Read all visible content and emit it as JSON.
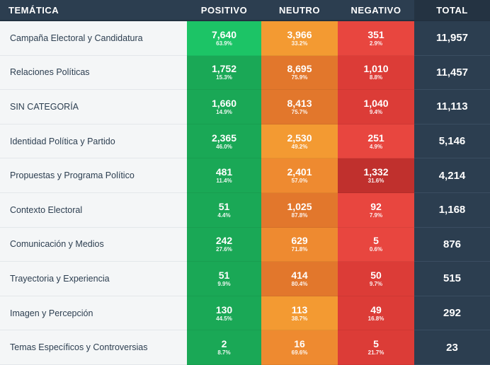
{
  "headers": {
    "tematica": "TEMÁTICA",
    "positivo": "POSITIVO",
    "neutro": "NEUTRO",
    "negativo": "NEGATIVO",
    "total": "TOTAL"
  },
  "colors": {
    "positivo_strong": "#1cc466",
    "positivo": "#1aa856",
    "neutro_light": "#f39a32",
    "neutro": "#ee8a30",
    "neutro_strong": "#e2772c",
    "negativo_light": "#e8463f",
    "negativo": "#dc3c37",
    "negativo_strong": "#c0302d",
    "total_bg": "#2c3e50",
    "header_bg": "#2c3e50"
  },
  "rows": [
    {
      "label": "Campaña Electoral y Candidatura",
      "pos": "7,640",
      "pos_pct": "63.9%",
      "neu": "3,966",
      "neu_pct": "33.2%",
      "neg": "351",
      "neg_pct": "2.9%",
      "total": "11,957"
    },
    {
      "label": "Relaciones Políticas",
      "pos": "1,752",
      "pos_pct": "15.3%",
      "neu": "8,695",
      "neu_pct": "75.9%",
      "neg": "1,010",
      "neg_pct": "8.8%",
      "total": "11,457"
    },
    {
      "label": "SIN CATEGORÍA",
      "pos": "1,660",
      "pos_pct": "14.9%",
      "neu": "8,413",
      "neu_pct": "75.7%",
      "neg": "1,040",
      "neg_pct": "9.4%",
      "total": "11,113"
    },
    {
      "label": "Identidad Política y Partido",
      "pos": "2,365",
      "pos_pct": "46.0%",
      "neu": "2,530",
      "neu_pct": "49.2%",
      "neg": "251",
      "neg_pct": "4.9%",
      "total": "5,146"
    },
    {
      "label": "Propuestas y Programa Político",
      "pos": "481",
      "pos_pct": "11.4%",
      "neu": "2,401",
      "neu_pct": "57.0%",
      "neg": "1,332",
      "neg_pct": "31.6%",
      "total": "4,214"
    },
    {
      "label": "Contexto Electoral",
      "pos": "51",
      "pos_pct": "4.4%",
      "neu": "1,025",
      "neu_pct": "87.8%",
      "neg": "92",
      "neg_pct": "7.9%",
      "total": "1,168"
    },
    {
      "label": "Comunicación y Medios",
      "pos": "242",
      "pos_pct": "27.6%",
      "neu": "629",
      "neu_pct": "71.8%",
      "neg": "5",
      "neg_pct": "0.6%",
      "total": "876"
    },
    {
      "label": "Trayectoria y Experiencia",
      "pos": "51",
      "pos_pct": "9.9%",
      "neu": "414",
      "neu_pct": "80.4%",
      "neg": "50",
      "neg_pct": "9.7%",
      "total": "515"
    },
    {
      "label": "Imagen y Percepción",
      "pos": "130",
      "pos_pct": "44.5%",
      "neu": "113",
      "neu_pct": "38.7%",
      "neg": "49",
      "neg_pct": "16.8%",
      "total": "292"
    },
    {
      "label": "Temas Específicos y Controversias",
      "pos": "2",
      "pos_pct": "8.7%",
      "neu": "16",
      "neu_pct": "69.6%",
      "neg": "5",
      "neg_pct": "21.7%",
      "total": "23"
    }
  ]
}
